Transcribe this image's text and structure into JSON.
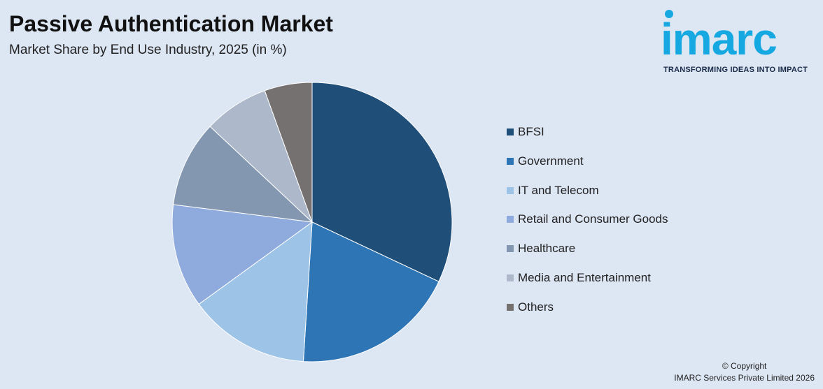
{
  "header": {
    "title": "Passive Authentication Market",
    "subtitle": "Market Share by End Use Industry, 2025 (in %)"
  },
  "logo": {
    "wordmark": "imarc",
    "tagline": "TRANSFORMING IDEAS INTO IMPACT",
    "color": "#16a8e0"
  },
  "chart_data": {
    "type": "pie",
    "title": "Passive Authentication Market",
    "subtitle": "Market Share by End Use Industry, 2025 (in %)",
    "legend_position": "right",
    "slices": [
      {
        "label": "BFSI",
        "value": 32,
        "color": "#1f4e79"
      },
      {
        "label": "Government",
        "value": 19,
        "color": "#2e75b6"
      },
      {
        "label": "IT and Telecom",
        "value": 14,
        "color": "#9dc3e6"
      },
      {
        "label": "Retail and Consumer Goods",
        "value": 12,
        "color": "#8faadc"
      },
      {
        "label": "Healthcare",
        "value": 10,
        "color": "#8497b0"
      },
      {
        "label": "Media and Entertainment",
        "value": 7.5,
        "color": "#adb9ca"
      },
      {
        "label": "Others",
        "value": 5.5,
        "color": "#767171"
      }
    ]
  },
  "footer": {
    "copyright_line1": "© Copyright",
    "copyright_line2": "IMARC Services Private Limited 2026"
  }
}
